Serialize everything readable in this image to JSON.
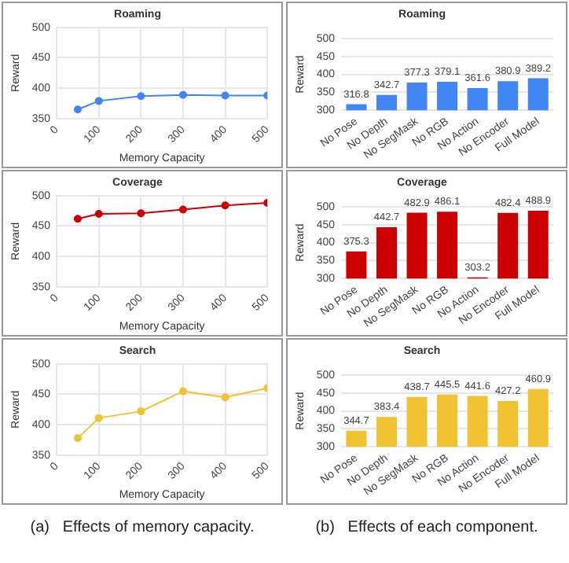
{
  "chart_data": [
    {
      "type": "line",
      "title": "Roaming",
      "xlabel": "Memory Capacity",
      "ylabel": "Reward",
      "x": [
        50,
        100,
        200,
        300,
        400,
        500
      ],
      "values": [
        365,
        379,
        387,
        389,
        388,
        388
      ],
      "color": "#4285f4",
      "xlim": [
        0,
        500
      ],
      "xticks": [
        0,
        100,
        200,
        300,
        400,
        500
      ],
      "ylim": [
        350,
        500
      ],
      "yticks": [
        350,
        400,
        450,
        500
      ],
      "grid": true,
      "marker": "circle",
      "legend": false
    },
    {
      "type": "line",
      "title": "Coverage",
      "xlabel": "Memory Capacity",
      "ylabel": "Reward",
      "x": [
        50,
        100,
        200,
        300,
        400,
        500
      ],
      "values": [
        462,
        470,
        471,
        477,
        484,
        488
      ],
      "color": "#cc0000",
      "xlim": [
        0,
        500
      ],
      "xticks": [
        0,
        100,
        200,
        300,
        400,
        500
      ],
      "ylim": [
        350,
        500
      ],
      "yticks": [
        350,
        400,
        450,
        500
      ],
      "grid": true,
      "marker": "circle",
      "legend": false
    },
    {
      "type": "line",
      "title": "Search",
      "xlabel": "Memory Capacity",
      "ylabel": "Reward",
      "x": [
        50,
        100,
        200,
        300,
        400,
        500
      ],
      "values": [
        378,
        411,
        422,
        455,
        445,
        460
      ],
      "color": "#f1c232",
      "xlim": [
        0,
        500
      ],
      "xticks": [
        0,
        100,
        200,
        300,
        400,
        500
      ],
      "ylim": [
        350,
        500
      ],
      "yticks": [
        350,
        400,
        450,
        500
      ],
      "grid": true,
      "marker": "circle",
      "legend": false,
      "annotations": [
        "(a)   Effects of memory capacity."
      ]
    },
    {
      "type": "bar",
      "title": "Roaming",
      "ylabel": "Reward",
      "categories": [
        "No Pose",
        "No Depth",
        "No SegMask",
        "No RGB",
        "No Action",
        "No Encoder",
        "Full Model"
      ],
      "values": [
        316.8,
        342.7,
        377.3,
        379.1,
        361.6,
        380.9,
        389.2
      ],
      "color": "#4285f4",
      "ylim": [
        300,
        500
      ],
      "yticks": [
        300,
        350,
        400,
        450,
        500
      ],
      "grid": "y",
      "data_labels": true,
      "legend": false
    },
    {
      "type": "bar",
      "title": "Coverage",
      "ylabel": "Reward",
      "categories": [
        "No Pose",
        "No Depth",
        "No SegMask",
        "No RGB",
        "No Action",
        "No Encoder",
        "Full Model"
      ],
      "values": [
        375.3,
        442.7,
        482.9,
        486.1,
        303.2,
        482.4,
        488.9
      ],
      "color": "#cc0000",
      "ylim": [
        300,
        500
      ],
      "yticks": [
        300,
        350,
        400,
        450,
        500
      ],
      "grid": "y",
      "data_labels": true,
      "legend": false
    },
    {
      "type": "bar",
      "title": "Search",
      "ylabel": "Reward",
      "categories": [
        "No Pose",
        "No Depth",
        "No SegMask",
        "No RGB",
        "No Action",
        "No Encoder",
        "Full Model"
      ],
      "values": [
        344.7,
        383.4,
        438.7,
        445.5,
        441.6,
        427.2,
        460.9
      ],
      "color": "#f1c232",
      "ylim": [
        300,
        500
      ],
      "yticks": [
        300,
        350,
        400,
        450,
        500
      ],
      "grid": "y",
      "data_labels": true,
      "legend": false,
      "annotations": [
        "(b)   Effects of each component."
      ]
    }
  ]
}
